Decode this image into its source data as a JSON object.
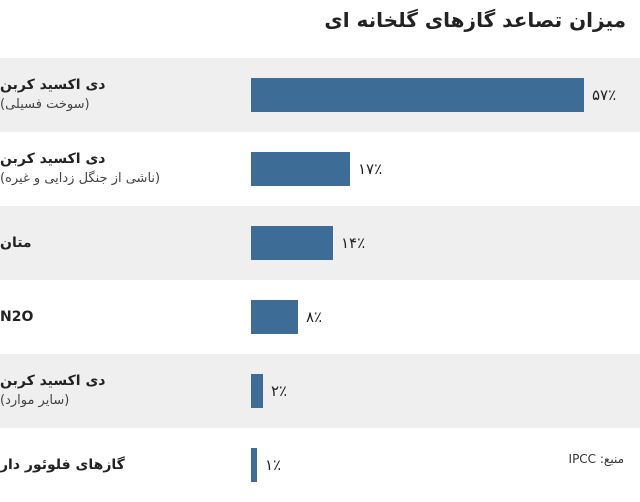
{
  "title": "میزان تصاعد گازهای گلخانه ای",
  "source": "منبع: IPCC",
  "colors": {
    "bar": "#3d6c96",
    "row_shade": "#efefef",
    "row_plain": "#ffffff",
    "text": "#222222"
  },
  "rows": [
    {
      "label": "دی اکسید کربن",
      "sublabel": "(سوخت فسیلی)",
      "value_label": "۵۷٪"
    },
    {
      "label": "دی اکسید کربن",
      "sublabel": "(ناشی از جنگل زدایی و غیره)",
      "value_label": "۱۷٪"
    },
    {
      "label": "متان",
      "sublabel": "",
      "value_label": "۱۴٪"
    },
    {
      "label": "N2O",
      "sublabel": "",
      "value_label": "۸٪"
    },
    {
      "label": "دی اکسید کربن",
      "sublabel": "(سایر موارد)",
      "value_label": "۲٪"
    },
    {
      "label": "گازهای فلوئور دار",
      "sublabel": "",
      "value_label": "۱٪"
    }
  ],
  "chart_data": {
    "type": "bar",
    "orientation": "horizontal",
    "title": "میزان تصاعد گازهای گلخانه ای",
    "categories": [
      "دی اکسید کربن (سوخت فسیلی)",
      "دی اکسید کربن (ناشی از جنگل زدایی و غیره)",
      "متان",
      "N2O",
      "دی اکسید کربن (سایر موارد)",
      "گازهای فلوئور دار"
    ],
    "values": [
      57,
      17,
      14,
      8,
      2,
      1
    ],
    "unit": "%",
    "xlim": [
      0,
      57
    ],
    "grid": false,
    "legend": "none"
  }
}
